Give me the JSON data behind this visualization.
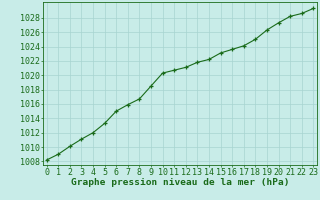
{
  "x": [
    0,
    1,
    2,
    3,
    4,
    5,
    6,
    7,
    8,
    9,
    10,
    11,
    12,
    13,
    14,
    15,
    16,
    17,
    18,
    19,
    20,
    21,
    22,
    23
  ],
  "y": [
    1008.2,
    1009.0,
    1010.1,
    1011.1,
    1012.0,
    1013.3,
    1015.0,
    1015.9,
    1016.7,
    1018.5,
    1020.3,
    1020.7,
    1021.1,
    1021.8,
    1022.2,
    1023.1,
    1023.6,
    1024.1,
    1025.0,
    1026.3,
    1027.3,
    1028.2,
    1028.6,
    1029.3
  ],
  "line_color": "#1a6b1a",
  "marker": "+",
  "bg_color": "#c8ece8",
  "grid_color": "#a8d4d0",
  "xlabel": "Graphe pression niveau de la mer (hPa)",
  "xlabel_color": "#1a6b1a",
  "tick_color": "#1a6b1a",
  "ylim": [
    1007.5,
    1030.2
  ],
  "xlim": [
    -0.3,
    23.3
  ],
  "yticks": [
    1008,
    1010,
    1012,
    1014,
    1016,
    1018,
    1020,
    1022,
    1024,
    1026,
    1028
  ],
  "xticks": [
    0,
    1,
    2,
    3,
    4,
    5,
    6,
    7,
    8,
    9,
    10,
    11,
    12,
    13,
    14,
    15,
    16,
    17,
    18,
    19,
    20,
    21,
    22,
    23
  ],
  "xlabel_fontsize": 6.8,
  "tick_fontsize": 6.0,
  "line_width": 0.8,
  "marker_size": 3.5,
  "marker_edge_width": 0.9
}
